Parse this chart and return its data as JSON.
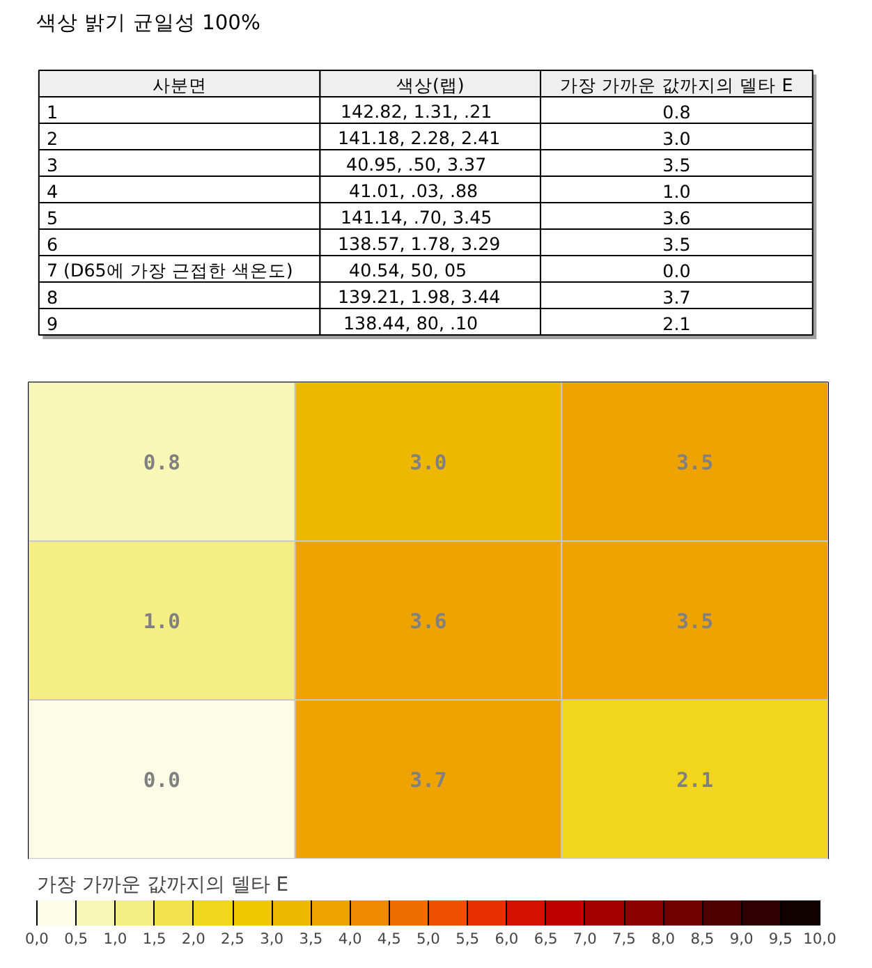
{
  "chart_data": [
    {
      "type": "other",
      "title": "색상 밝기 균일성 100%",
      "annotations": [
        "사분면",
        "색상(랩)",
        "가장 가까운 값까지의 델타 E",
        "1",
        "142.82,   1.31,    .21",
        "0.8",
        "2",
        "141.18,   2.28,   2.41",
        "3.0",
        "3",
        "40.95,    .50,   3.37",
        "3.5",
        "4",
        "41.01,    .03,    .88",
        "1.0",
        "5",
        "141.14,    .70,   3.45",
        "3.6",
        "6",
        "138.57,   1.78,   3.29",
        "3.5",
        "7 (D65에 가장 근접한 색온도)",
        "40.54,     50,     05",
        "0.0",
        "8",
        "139.21,   1.98,   3.44",
        "3.7",
        "9",
        "138.44,     80,    .10",
        "2.1"
      ]
    },
    {
      "type": "heatmap",
      "categories": [
        null,
        null,
        null
      ],
      "y_categories": [
        null,
        null,
        null
      ],
      "cells": [
        [
          0.8,
          3.0,
          3.5
        ],
        [
          1.0,
          3.6,
          3.5
        ],
        [
          0.0,
          3.7,
          2.1
        ]
      ],
      "cell_labels": [
        [
          "0.8",
          "3.0",
          "3.5"
        ],
        [
          "1.0",
          "3.6",
          "3.5"
        ],
        [
          "0.0",
          "3.7",
          "2.1"
        ]
      ],
      "tick_labels": false,
      "clabel": "가장 가까운 값까지의 델타 E",
      "clim": [
        0,
        10
      ],
      "cticks": [
        {
          "value": 0,
          "label": "0,0"
        },
        {
          "value": 0.5,
          "label": "0,5"
        },
        {
          "value": 1,
          "label": "1,0"
        },
        {
          "value": 1.5,
          "label": "1,5"
        },
        {
          "value": 2,
          "label": "2,0"
        },
        {
          "value": 2.5,
          "label": "2,5"
        },
        {
          "value": 3,
          "label": "3,0"
        },
        {
          "value": 3.5,
          "label": "3,5"
        },
        {
          "value": 4,
          "label": "4,0"
        },
        {
          "value": 4.5,
          "label": "4,5"
        },
        {
          "value": 5,
          "label": "5,0"
        },
        {
          "value": 5.5,
          "label": "5,5"
        },
        {
          "value": 6,
          "label": "6,0"
        },
        {
          "value": 6.5,
          "label": "6,5"
        },
        {
          "value": 7,
          "label": "7,0"
        },
        {
          "value": 7.5,
          "label": "7,5"
        },
        {
          "value": 8,
          "label": "8,0"
        },
        {
          "value": 8.5,
          "label": "8,5"
        },
        {
          "value": 9,
          "label": "9,0"
        },
        {
          "value": 9.5,
          "label": "9,5"
        },
        {
          "value": 10,
          "label": "10,0"
        }
      ]
    }
  ]
}
